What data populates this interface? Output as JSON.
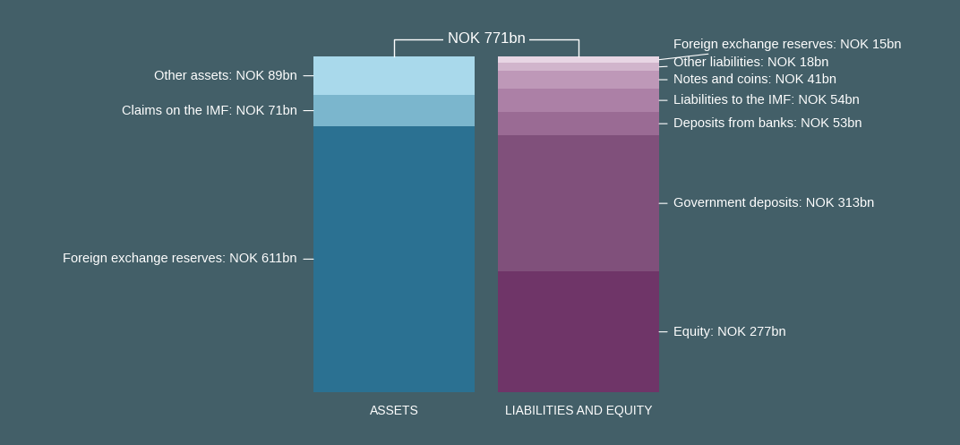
{
  "chart_data": {
    "type": "bar",
    "stacked": true,
    "tick_labels": "x",
    "annotation": "NOK 771bn",
    "categories": [
      "ASSETS",
      "LIABILITIES AND EQUITY"
    ],
    "ylim": [
      0,
      771
    ],
    "series": [
      {
        "color": "#2b7192",
        "values": [
          611,
          null
        ],
        "value_labels": [
          "Foreign exchange reserves: NOK 611bn",
          null
        ]
      },
      {
        "color": "#7bb6cd",
        "values": [
          71,
          null
        ],
        "value_labels": [
          "Claims on the IMF: NOK 71bn",
          null
        ]
      },
      {
        "color": "#a9d9eb",
        "values": [
          89,
          null
        ],
        "value_labels": [
          "Other assets: NOK 89bn",
          null
        ]
      },
      {
        "color": "#6f3568",
        "values": [
          null,
          277
        ],
        "value_labels": [
          null,
          "Equity: NOK 277bn"
        ]
      },
      {
        "color": "#80507b",
        "values": [
          null,
          313
        ],
        "value_labels": [
          null,
          "Government deposits: NOK 313bn"
        ]
      },
      {
        "color": "#9a6b94",
        "values": [
          null,
          53
        ],
        "value_labels": [
          null,
          "Deposits from banks: NOK 53bn"
        ]
      },
      {
        "color": "#ac80a6",
        "values": [
          null,
          54
        ],
        "value_labels": [
          null,
          "Liabilities to the IMF: NOK 54bn"
        ]
      },
      {
        "color": "#be98b8",
        "values": [
          null,
          41
        ],
        "value_labels": [
          null,
          "Notes and coins: NOK 41bn"
        ]
      },
      {
        "color": "#d1b5cc",
        "values": [
          null,
          18
        ],
        "value_labels": [
          null,
          "Other liabilities: NOK 18bn"
        ]
      },
      {
        "color": "#e8d6e4",
        "values": [
          null,
          15
        ],
        "value_labels": [
          null,
          "Foreign exchange reserves: NOK 15bn"
        ]
      }
    ]
  }
}
